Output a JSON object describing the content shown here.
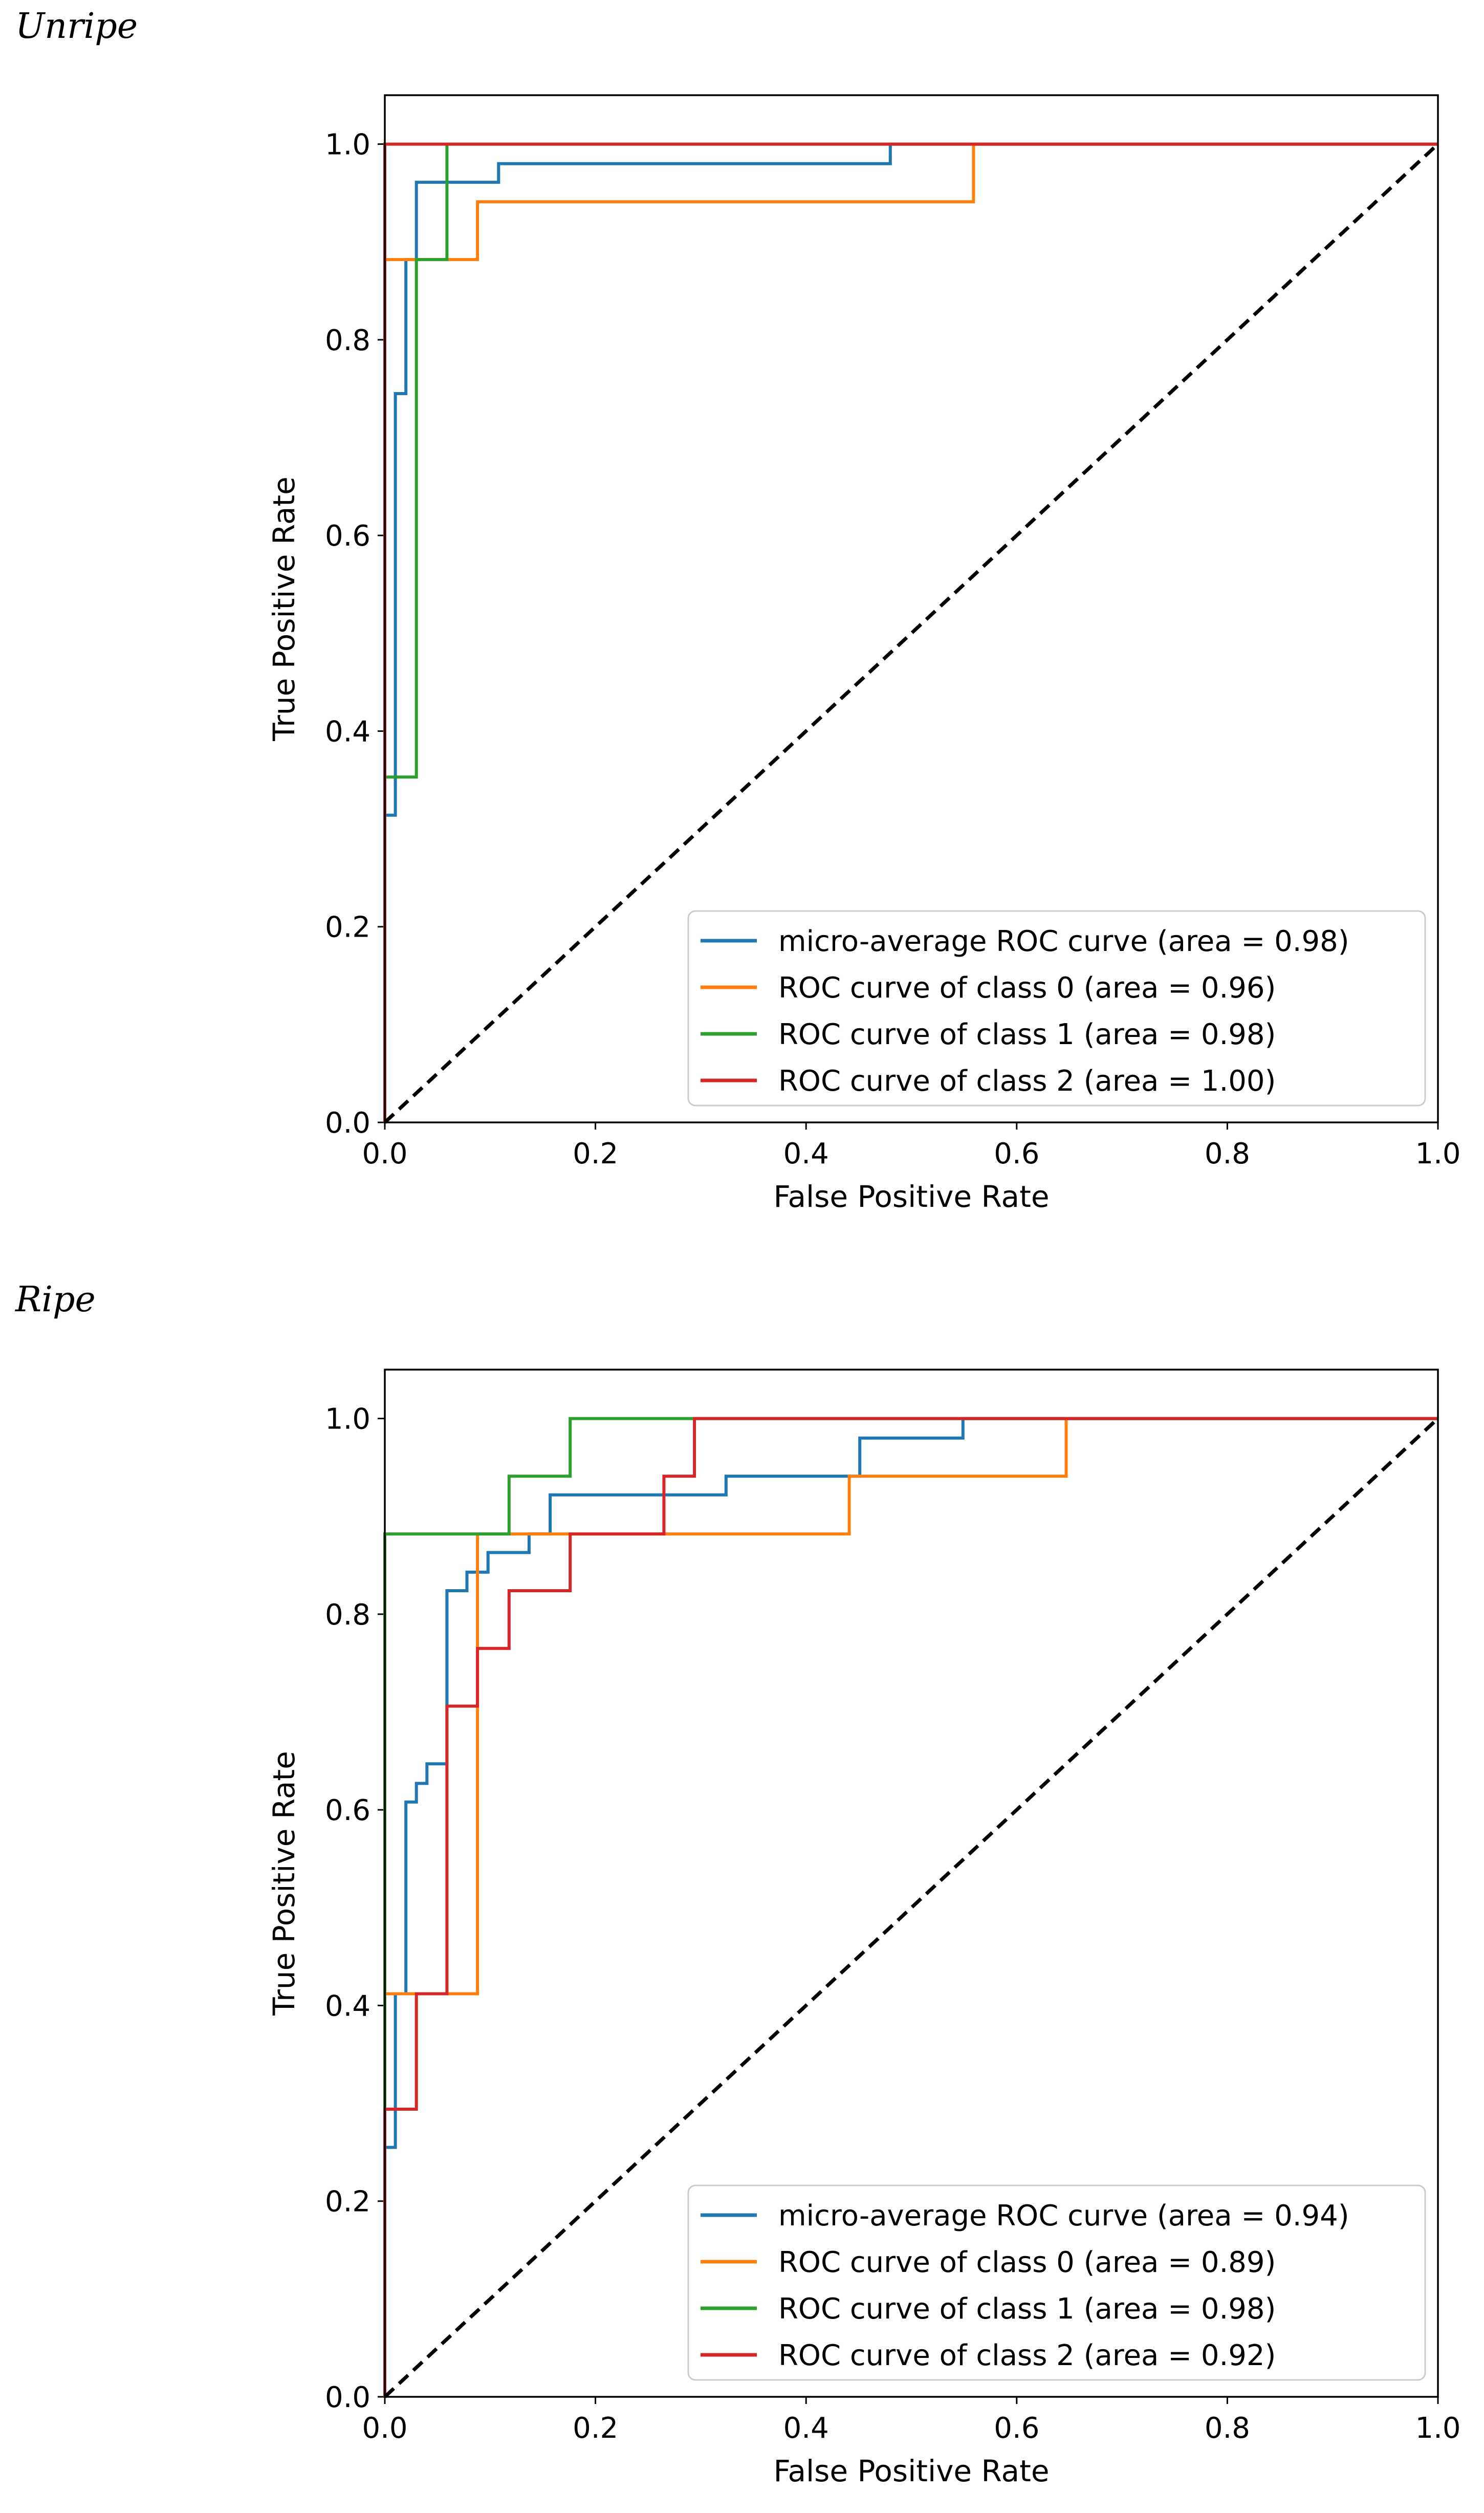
{
  "panels": [
    {
      "label": "Unripe"
    },
    {
      "label": "Ripe"
    }
  ],
  "chart_data": [
    {
      "type": "line",
      "panel_label": "Unripe",
      "xlabel": "False Positive Rate",
      "ylabel": "True Positive Rate",
      "xlim": [
        0.0,
        1.0
      ],
      "ylim": [
        0.0,
        1.05
      ],
      "x_ticks": [
        0.0,
        0.2,
        0.4,
        0.6,
        0.8,
        1.0
      ],
      "y_ticks": [
        0.0,
        0.2,
        0.4,
        0.6,
        0.8,
        1.0
      ],
      "x_tick_labels": [
        "0.0",
        "0.2",
        "0.4",
        "0.6",
        "0.8",
        "1.0"
      ],
      "y_tick_labels": [
        "0.0",
        "0.2",
        "0.4",
        "0.6",
        "0.8",
        "1.0"
      ],
      "grid": false,
      "legend_position": "bottom-right",
      "series": [
        {
          "name": "micro-average ROC curve (area = 0.98)",
          "color": "#1f77b4",
          "x": [
            0,
            0,
            0.01,
            0.01,
            0.02,
            0.02,
            0.03,
            0.03,
            0.108,
            0.108,
            0.48,
            0.48,
            1.0
          ],
          "y": [
            0,
            0.314,
            0.314,
            0.745,
            0.745,
            0.882,
            0.882,
            0.961,
            0.961,
            0.98,
            0.98,
            1.0,
            1.0
          ]
        },
        {
          "name": "ROC curve of class 0 (area = 0.96)",
          "color": "#ff7f0e",
          "x": [
            0,
            0,
            0.088,
            0.088,
            0.559,
            0.559,
            1.0
          ],
          "y": [
            0,
            0.882,
            0.882,
            0.941,
            0.941,
            1.0,
            1.0
          ]
        },
        {
          "name": "ROC curve of class 1 (area = 0.98)",
          "color": "#2ca02c",
          "x": [
            0,
            0,
            0.03,
            0.03,
            0.059,
            0.059,
            1.0
          ],
          "y": [
            0,
            0.353,
            0.353,
            0.882,
            0.882,
            1.0,
            1.0
          ]
        },
        {
          "name": "ROC curve of class 2 (area = 1.00)",
          "color": "#d62728",
          "x": [
            0,
            0,
            1.0
          ],
          "y": [
            0,
            1.0,
            1.0
          ]
        }
      ],
      "diagonal": {
        "x": [
          0,
          1
        ],
        "y": [
          0,
          1
        ],
        "style": "dashed",
        "color": "#000000"
      }
    },
    {
      "type": "line",
      "panel_label": "Ripe",
      "xlabel": "False Positive Rate",
      "ylabel": "True Positive Rate",
      "xlim": [
        0.0,
        1.0
      ],
      "ylim": [
        0.0,
        1.05
      ],
      "x_ticks": [
        0.0,
        0.2,
        0.4,
        0.6,
        0.8,
        1.0
      ],
      "y_ticks": [
        0.0,
        0.2,
        0.4,
        0.6,
        0.8,
        1.0
      ],
      "x_tick_labels": [
        "0.0",
        "0.2",
        "0.4",
        "0.6",
        "0.8",
        "1.0"
      ],
      "y_tick_labels": [
        "0.0",
        "0.2",
        "0.4",
        "0.6",
        "0.8",
        "1.0"
      ],
      "grid": false,
      "legend_position": "bottom-right",
      "series": [
        {
          "name": "micro-average ROC curve (area = 0.94)",
          "color": "#1f77b4",
          "x": [
            0,
            0,
            0.01,
            0.01,
            0.02,
            0.02,
            0.03,
            0.03,
            0.04,
            0.04,
            0.059,
            0.059,
            0.078,
            0.078,
            0.098,
            0.098,
            0.137,
            0.137,
            0.157,
            0.157,
            0.324,
            0.324,
            0.451,
            0.451,
            0.549,
            0.549,
            1.0
          ],
          "y": [
            0,
            0.255,
            0.255,
            0.412,
            0.412,
            0.608,
            0.608,
            0.627,
            0.627,
            0.647,
            0.647,
            0.824,
            0.824,
            0.843,
            0.843,
            0.863,
            0.863,
            0.882,
            0.882,
            0.922,
            0.922,
            0.941,
            0.941,
            0.98,
            0.98,
            1.0,
            1.0
          ]
        },
        {
          "name": "ROC curve of class 0 (area = 0.89)",
          "color": "#ff7f0e",
          "x": [
            0,
            0,
            0.088,
            0.088,
            0.441,
            0.441,
            0.647,
            0.647,
            1.0
          ],
          "y": [
            0,
            0.412,
            0.412,
            0.882,
            0.882,
            0.941,
            0.941,
            1.0,
            1.0
          ]
        },
        {
          "name": "ROC curve of class 1 (area = 0.98)",
          "color": "#2ca02c",
          "x": [
            0,
            0,
            0.118,
            0.118,
            0.176,
            0.176,
            1.0
          ],
          "y": [
            0,
            0.882,
            0.882,
            0.941,
            0.941,
            1.0,
            1.0
          ]
        },
        {
          "name": "ROC curve of class 2 (area = 0.92)",
          "color": "#d62728",
          "x": [
            0,
            0,
            0.03,
            0.03,
            0.059,
            0.059,
            0.088,
            0.088,
            0.118,
            0.118,
            0.176,
            0.176,
            0.265,
            0.265,
            0.294,
            0.294,
            1.0
          ],
          "y": [
            0,
            0.294,
            0.294,
            0.412,
            0.412,
            0.706,
            0.706,
            0.765,
            0.765,
            0.824,
            0.824,
            0.882,
            0.882,
            0.941,
            0.941,
            1.0,
            1.0
          ]
        }
      ],
      "diagonal": {
        "x": [
          0,
          1
        ],
        "y": [
          0,
          1
        ],
        "style": "dashed",
        "color": "#000000"
      }
    }
  ]
}
